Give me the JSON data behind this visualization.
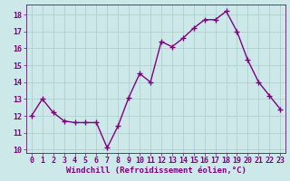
{
  "x": [
    0,
    1,
    2,
    3,
    4,
    5,
    6,
    7,
    8,
    9,
    10,
    11,
    12,
    13,
    14,
    15,
    16,
    17,
    18,
    19,
    20,
    21,
    22,
    23
  ],
  "y": [
    12.0,
    13.0,
    12.2,
    11.7,
    11.6,
    11.6,
    11.6,
    10.1,
    11.4,
    13.1,
    14.5,
    14.0,
    16.4,
    16.1,
    16.6,
    17.2,
    17.7,
    17.7,
    18.2,
    17.0,
    15.3,
    14.0,
    13.2,
    12.4
  ],
  "line_color": "#800080",
  "bg_color": "#cce8e8",
  "grid_color": "#b0d0d0",
  "xlabel": "Windchill (Refroidissement éolien,°C)",
  "ylim": [
    9.8,
    18.6
  ],
  "xlim": [
    -0.5,
    23.5
  ],
  "yticks": [
    10,
    11,
    12,
    13,
    14,
    15,
    16,
    17,
    18
  ],
  "xticks": [
    0,
    1,
    2,
    3,
    4,
    5,
    6,
    7,
    8,
    9,
    10,
    11,
    12,
    13,
    14,
    15,
    16,
    17,
    18,
    19,
    20,
    21,
    22,
    23
  ],
  "marker": "+",
  "marker_size": 4,
  "line_width": 1.0,
  "xlabel_fontsize": 6.5,
  "tick_fontsize": 6.0,
  "marker_edge_width": 1.0
}
